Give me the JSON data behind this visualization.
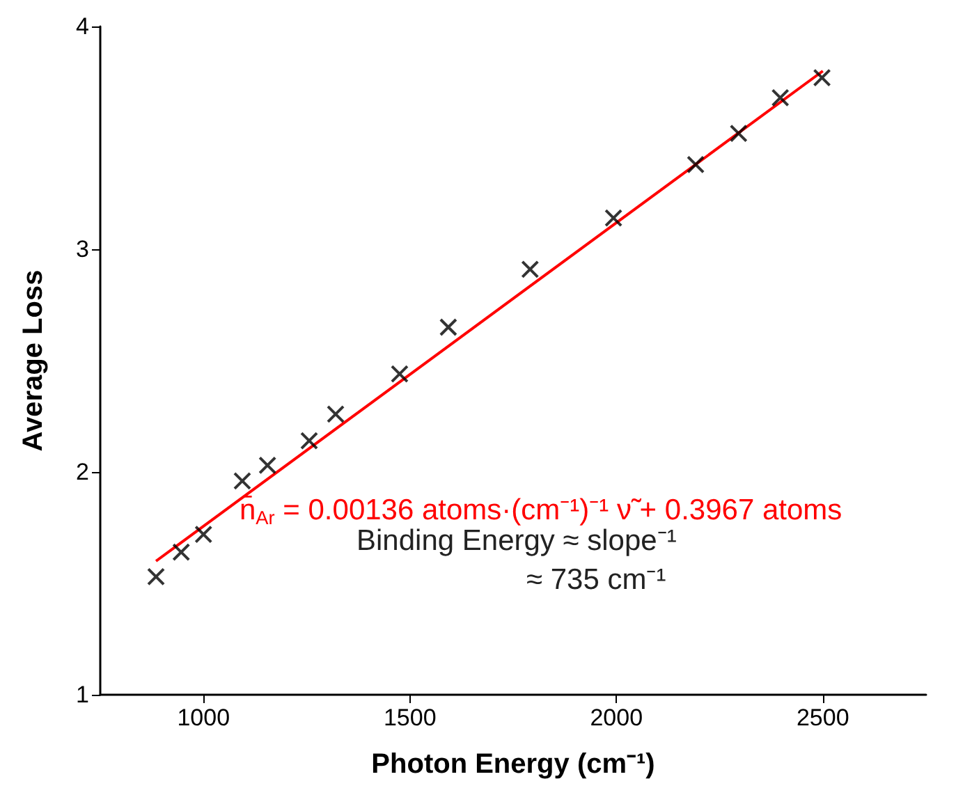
{
  "chart_data": {
    "type": "scatter",
    "xlabel": "Photon Energy (cm⁻¹)",
    "ylabel": "Average Loss",
    "xlim": [
      750,
      2750
    ],
    "xticks": [
      1000,
      1500,
      2000,
      2500
    ],
    "ylim": [
      1,
      4
    ],
    "yticks": [
      1,
      2,
      3,
      4
    ],
    "grid": false,
    "marker": "cross",
    "series": [
      {
        "color": "#000000",
        "x": [
          885,
          946,
          1000,
          1094,
          1155,
          1256,
          1320,
          1475,
          1593,
          1791,
          1993,
          2192,
          2296,
          2397,
          2498
        ],
        "values": [
          1.53,
          1.64,
          1.72,
          1.96,
          2.03,
          2.14,
          2.26,
          2.44,
          2.65,
          2.91,
          3.14,
          3.38,
          3.52,
          3.68,
          3.77
        ]
      },
      {
        "type": "line",
        "color": "#ff0000",
        "marker": "none",
        "x": [
          885,
          2500
        ],
        "values": [
          1.6,
          3.8
        ]
      }
    ],
    "annotations": [
      "n̄$_{Ar}$ = 0.00136 atoms·(cm⁻¹)⁻¹ ν̃ + 0.3967 atoms",
      "Binding Energy ≈ slope⁻¹",
      "≈ 735 cm⁻¹"
    ]
  }
}
